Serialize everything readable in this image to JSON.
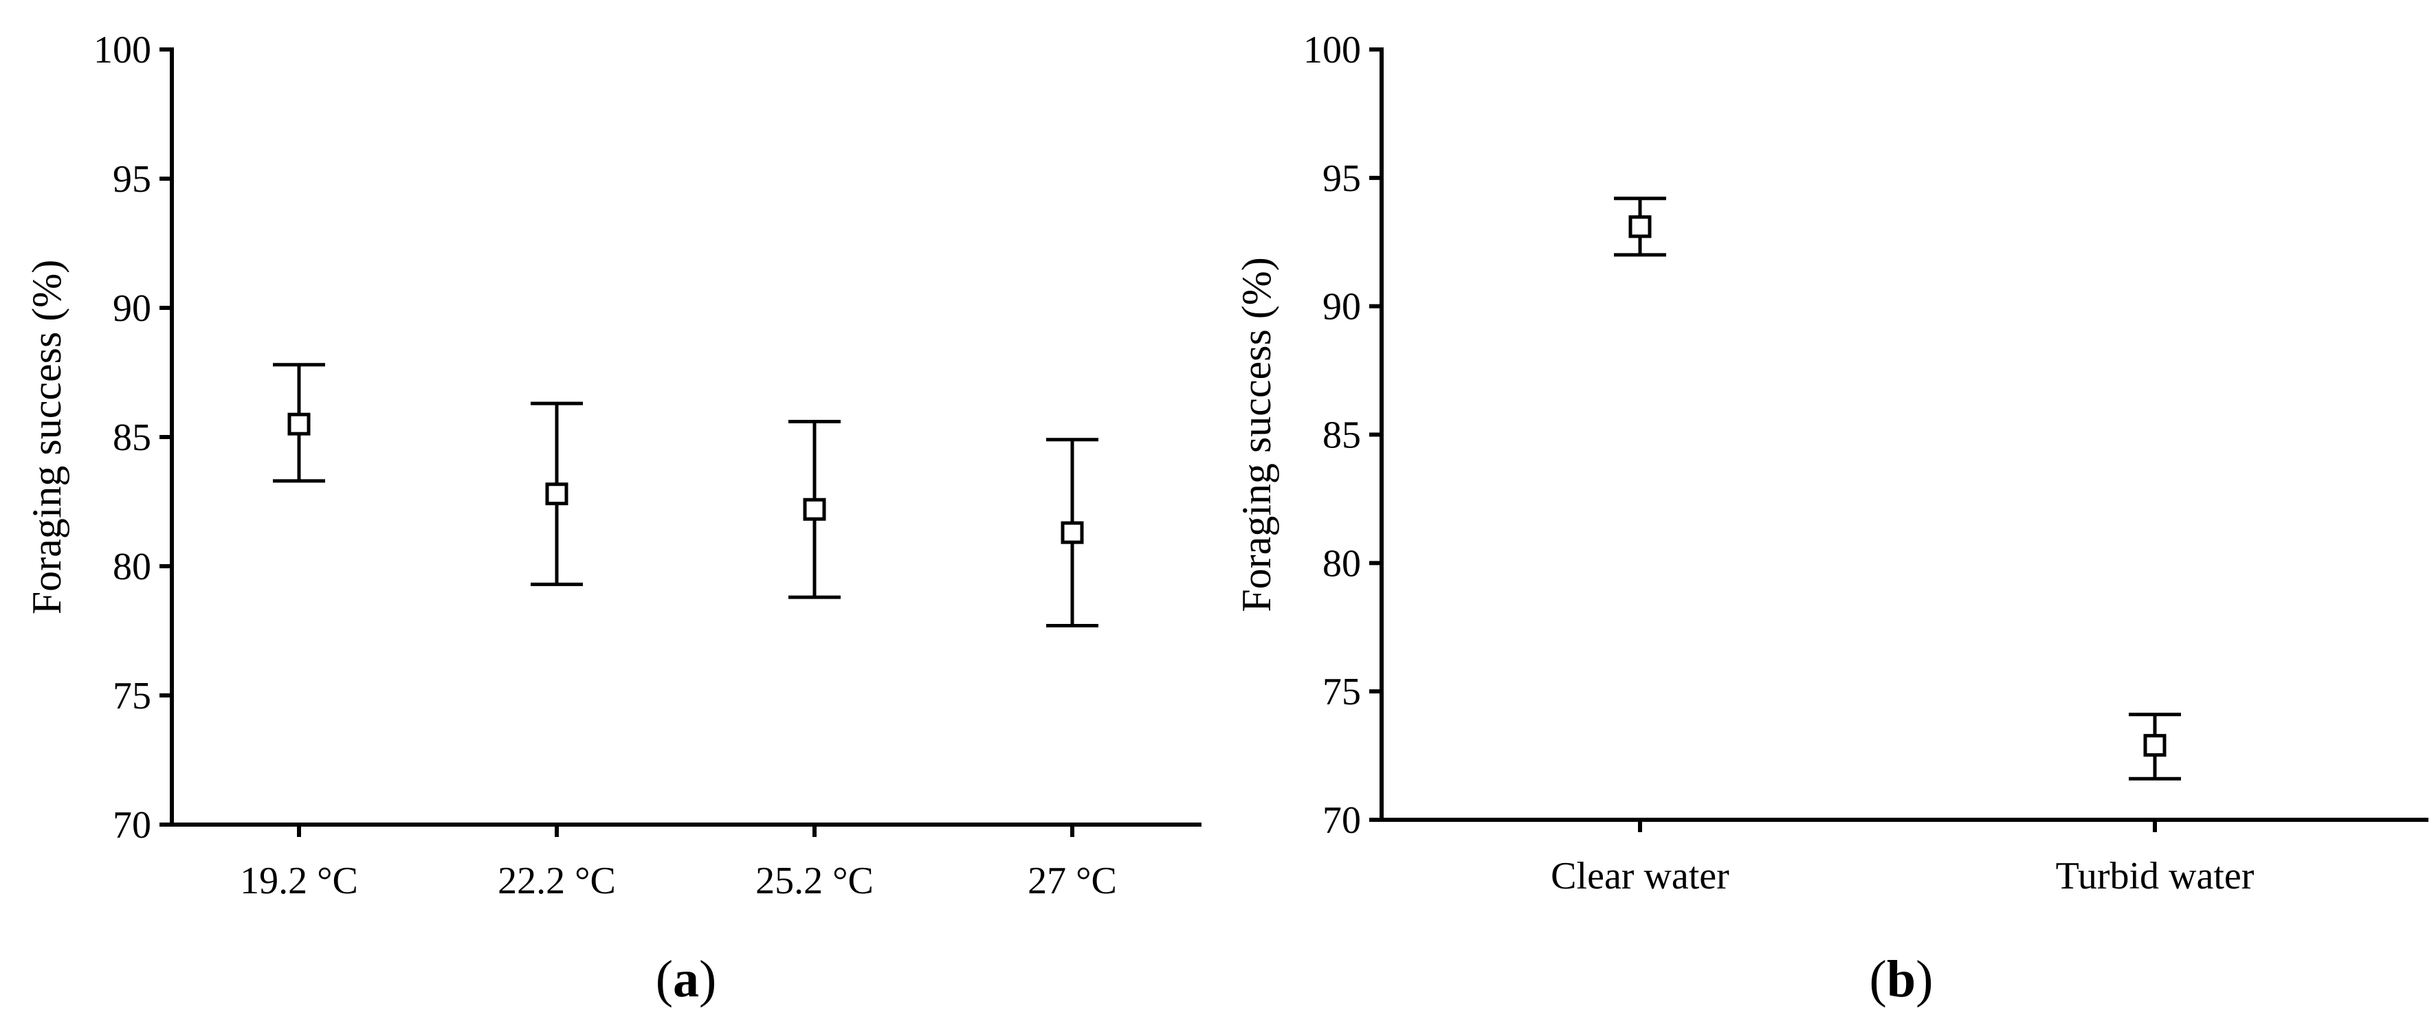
{
  "chart_data": [
    {
      "type": "scatter",
      "panel_label": "a",
      "categories": [
        "19.2 °C",
        "22.2 °C",
        "25.2 °C",
        "27 °C"
      ],
      "values": [
        85.5,
        82.8,
        82.2,
        81.3
      ],
      "error_low": [
        83.3,
        79.3,
        78.8,
        77.7
      ],
      "error_high": [
        87.8,
        86.3,
        85.6,
        84.9
      ],
      "xlabel": "",
      "ylabel": "Foraging success (%)",
      "ylim": [
        70,
        100
      ],
      "yticks": [
        70,
        75,
        80,
        85,
        90,
        95,
        100
      ],
      "grid": false,
      "marker": "open-square"
    },
    {
      "type": "scatter",
      "panel_label": "b",
      "categories": [
        "Clear water",
        "Turbid water"
      ],
      "values": [
        93.1,
        72.9
      ],
      "error_low": [
        92.0,
        71.6
      ],
      "error_high": [
        94.2,
        74.1
      ],
      "xlabel": "",
      "ylabel": "Foraging success (%)",
      "ylim": [
        70,
        100
      ],
      "yticks": [
        70,
        75,
        80,
        85,
        90,
        95,
        100
      ],
      "grid": false,
      "marker": "open-square"
    }
  ],
  "colors": {
    "axis": "#000000",
    "marker_fill": "#ffffff",
    "marker_stroke": "#000000"
  }
}
